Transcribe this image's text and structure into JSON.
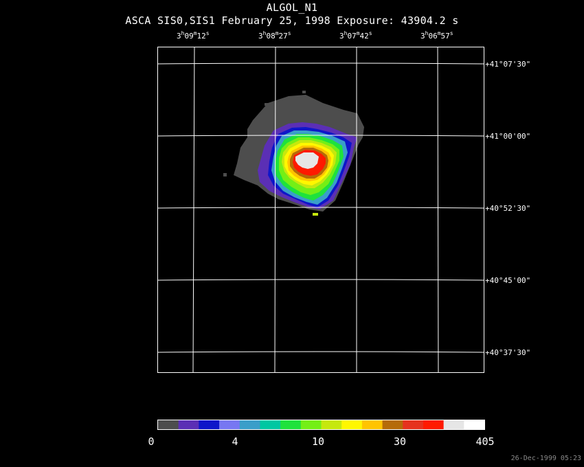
{
  "title": "ALGOL_N1",
  "subtitle": "ASCA SIS0,SIS1 February 25, 1998 Exposure: 43904.2 s",
  "ra_ticks": [
    {
      "h": "3",
      "m": "09",
      "s": "12"
    },
    {
      "h": "3",
      "m": "08",
      "s": "27"
    },
    {
      "h": "3",
      "m": "07",
      "s": "42"
    },
    {
      "h": "3",
      "m": "06",
      "s": "57"
    }
  ],
  "dec_ticks": [
    "+41°07'30\"",
    "+41°00'00\"",
    "+40°52'30\"",
    "+40°45'00\"",
    "+40°37'30\""
  ],
  "colorbar": {
    "colors": [
      "#4d4d4d",
      "#5b2fb5",
      "#0e16c9",
      "#7777f2",
      "#3a9ec9",
      "#00c7a2",
      "#1fe23c",
      "#74ef16",
      "#c6e80e",
      "#fff700",
      "#ffc400",
      "#b56b08",
      "#e6321e",
      "#ff1a00",
      "#e6e6e6",
      "#ffffff"
    ],
    "tick_labels": [
      "0",
      "4",
      "10",
      "30",
      "405"
    ]
  },
  "footer": "26-Dec-1999 05:23"
}
